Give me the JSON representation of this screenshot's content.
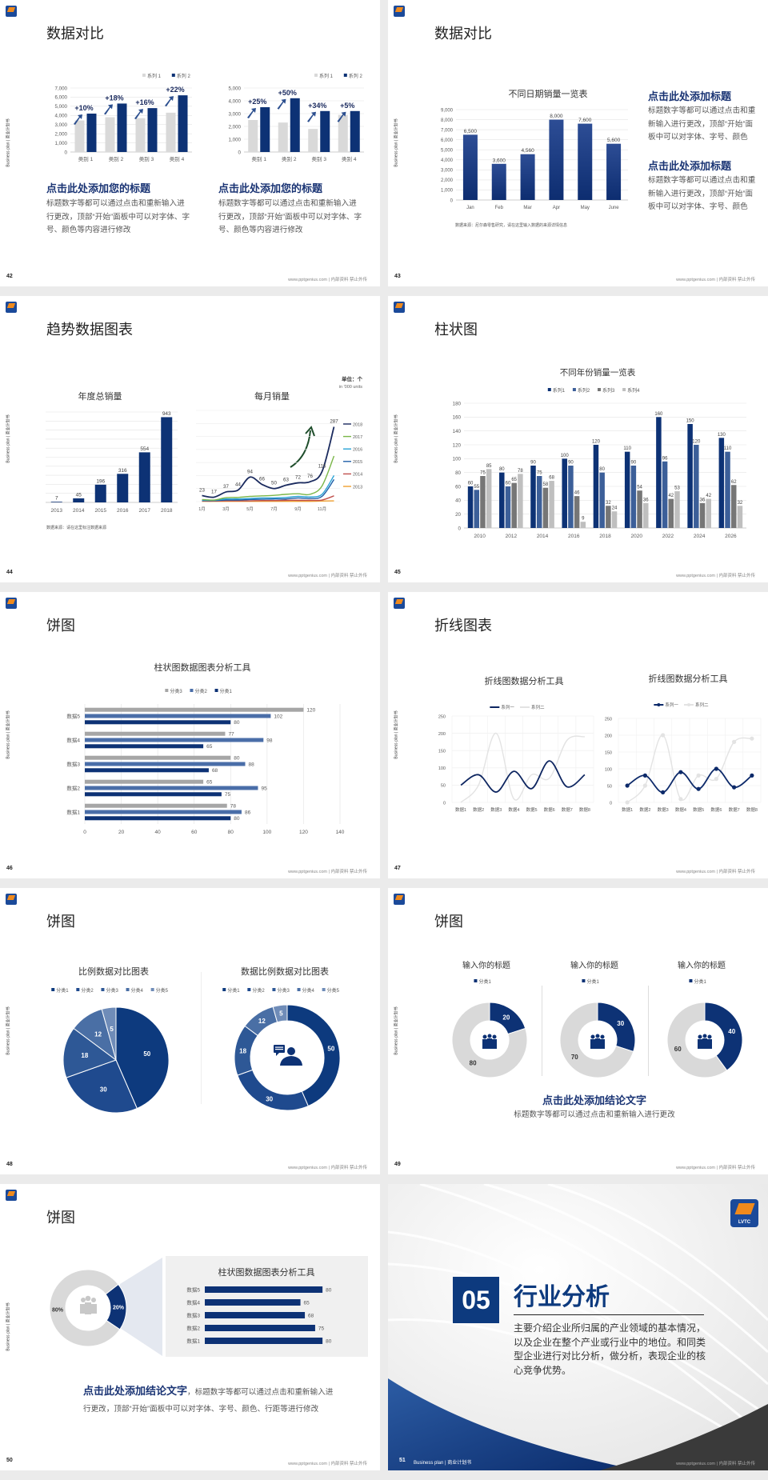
{
  "common": {
    "side_text": "Business plan | 商业计划书",
    "footer": "www.pptgenius.com | 内部资料 禁止外传",
    "logo_text": "LVTC"
  },
  "colors": {
    "navy": "#0d3275",
    "blue": "#3c5f99",
    "gray": "#d9d9d9",
    "dark_gray": "#767676",
    "light_gray": "#bfbfbf",
    "heading": "#1a3474"
  },
  "slides": {
    "s42": {
      "page": "42",
      "title": "数据对比",
      "blocks": [
        {
          "heading": "点击此处添加您的标题",
          "body": "标题数字等都可以通过点击和重新输入进行更改，顶部“开始”面板中可以对字体、字号、颜色等内容进行修改"
        },
        {
          "heading": "点击此处添加您的标题",
          "body": "标题数字等都可以通过点击和重新输入进行更改，顶部“开始”面板中可以对字体、字号、颜色等内容进行修改"
        }
      ]
    },
    "s43": {
      "page": "43",
      "title": "数据对比",
      "blocks": [
        {
          "heading": "点击此处添加标题",
          "body": "标题数字等都可以通过点击和重新输入进行更改，顶部“开始”面板中可以对字体、字号、颜色"
        },
        {
          "heading": "点击此处添加标题",
          "body": "标题数字等都可以通过点击和重新输入进行更改，顶部“开始”面板中可以对字体、字号、颜色"
        }
      ]
    },
    "s44": {
      "page": "44",
      "title": "趋势数据图表",
      "unit": "单位：个",
      "unit_en": "in '000 units"
    },
    "s45": {
      "page": "45",
      "title": "柱状图"
    },
    "s46": {
      "page": "46",
      "title": "饼图"
    },
    "s47": {
      "page": "47",
      "title": "折线图表"
    },
    "s48": {
      "page": "48",
      "title": "饼图"
    },
    "s49": {
      "page": "49",
      "title": "饼图",
      "conclusion": "点击此处添加结论文字",
      "body": "标题数字等都可以通过点击和重新输入进行更改"
    },
    "s50": {
      "page": "50",
      "title": "饼图",
      "conclusion": "点击此处添加结论文字",
      "body": "，标题数字等都可以通过点击和重新输入进行更改，顶部“开始”面板中可以对字体、字号、颜色、行距等进行修改"
    },
    "s51": {
      "page": "51",
      "number": "05",
      "title": "行业分析",
      "body": "主要介绍企业所归属的产业领域的基本情况，以及企业在整个产业或行业中的地位。和同类型企业进行对比分析，做分析，表现企业的核心竞争优势。",
      "footer_label": "Business plan | 商业计划书"
    }
  },
  "chart_data": [
    {
      "type": "bar",
      "categories": [
        "类别 1",
        "类别 2",
        "类别 3",
        "类别 4"
      ],
      "series": [
        {
          "name": "系列 1",
          "values": [
            3450,
            3800,
            3700,
            4300
          ]
        },
        {
          "name": "系列 2",
          "values": [
            4200,
            5300,
            4800,
            6200
          ]
        }
      ],
      "colors": [
        "#d9d9d9",
        "#0d3275"
      ],
      "ylim": [
        0,
        7000
      ],
      "ystep": 1000,
      "annotations": [
        "+10%",
        "+18%",
        "+16%",
        "+22%"
      ],
      "legend": "top-right",
      "grid": true
    },
    {
      "type": "bar",
      "categories": [
        "类别 1",
        "类别 2",
        "类别 3",
        "类别 4"
      ],
      "series": [
        {
          "name": "系列 1",
          "values": [
            2500,
            2300,
            1800,
            2900
          ]
        },
        {
          "name": "系列 2",
          "values": [
            3500,
            4200,
            3200,
            3200
          ]
        }
      ],
      "colors": [
        "#d9d9d9",
        "#0d3275"
      ],
      "ylim": [
        0,
        5000
      ],
      "ystep": 1000,
      "annotations": [
        "+25%",
        "+50%",
        "+34%",
        "+5%"
      ],
      "legend": "top-right",
      "grid": true
    },
    {
      "type": "bar",
      "title": "不同日期销量一览表",
      "categories": [
        "Jan",
        "Feb",
        "Mar",
        "Apr",
        "May",
        "June"
      ],
      "values": [
        6500,
        3600,
        4560,
        8000,
        7600,
        5600
      ],
      "data_labels": [
        "6,500",
        "3,600",
        "4,560",
        "8,000",
        "7,600",
        "5,600"
      ],
      "colors": [
        "#0d2d70"
      ],
      "ylim": [
        0,
        9000
      ],
      "ystep": 1000,
      "grid": true,
      "source": "数据来源：尼尔森零售研究，请在这里输入数据的来源详情信息"
    },
    {
      "type": "bar",
      "title": "年度总销量",
      "categories": [
        "2013",
        "2014",
        "2015",
        "2016",
        "2017",
        "2018"
      ],
      "values": [
        7,
        45,
        196,
        316,
        554,
        943
      ],
      "data_labels": [
        "7",
        "45",
        "196",
        "316",
        "554",
        "943"
      ],
      "colors": [
        "#0d3275"
      ],
      "ylim": [
        0,
        1000
      ],
      "ystep": 100,
      "grid": true,
      "source": "数据来源：请在这里标注数据来源"
    },
    {
      "type": "line",
      "title": "每月销量",
      "categories": [
        "1月",
        "2月",
        "3月",
        "4月",
        "5月",
        "6月",
        "7月",
        "8月",
        "9月",
        "10月",
        "11月",
        "12月"
      ],
      "series": [
        {
          "name": "2018",
          "values": [
            23,
            17,
            37,
            44,
            94,
            66,
            50,
            63,
            72,
            76,
            115,
            287
          ],
          "data_labels": [
            "23",
            "17",
            "37",
            "44",
            "94",
            "66",
            "50",
            "63",
            "72",
            "76",
            "115",
            "287"
          ]
        },
        {
          "name": "2017",
          "values": [
            8,
            6,
            15,
            16,
            20,
            22,
            24,
            28,
            30,
            28,
            60,
            175
          ]
        },
        {
          "name": "2016",
          "values": [
            5,
            5,
            10,
            10,
            12,
            14,
            14,
            16,
            20,
            18,
            28,
            100
          ]
        },
        {
          "name": "2015",
          "values": [
            4,
            4,
            6,
            6,
            8,
            9,
            10,
            10,
            14,
            12,
            20,
            85
          ]
        },
        {
          "name": "2014",
          "values": [
            2,
            2,
            3,
            3,
            3,
            4,
            4,
            5,
            5,
            5,
            6,
            22
          ]
        },
        {
          "name": "2013",
          "values": [
            1,
            1,
            1,
            1,
            1,
            1,
            1,
            1,
            1,
            1,
            2,
            3
          ]
        }
      ],
      "colors": [
        "#1a2a5e",
        "#7ab648",
        "#29a3d6",
        "#1f5fa8",
        "#c0504d",
        "#f0a030"
      ],
      "ylim": [
        0,
        350
      ],
      "ystep": 50,
      "grid": true,
      "legend": "right"
    },
    {
      "type": "bar",
      "title": "不同年份销量一览表",
      "categories": [
        "2010",
        "2012",
        "2014",
        "2016",
        "2018",
        "2020",
        "2022",
        "2024",
        "2026"
      ],
      "series": [
        {
          "name": "系列1",
          "values": [
            60,
            80,
            90,
            100,
            120,
            110,
            160,
            150,
            130
          ]
        },
        {
          "name": "系列2",
          "values": [
            55,
            60,
            75,
            90,
            80,
            90,
            96,
            120,
            110
          ]
        },
        {
          "name": "系列3",
          "values": [
            75,
            65,
            58,
            46,
            32,
            54,
            42,
            36,
            62
          ]
        },
        {
          "name": "系列4",
          "values": [
            85,
            78,
            68,
            9,
            24,
            36,
            53,
            42,
            32
          ]
        }
      ],
      "colors": [
        "#0d3275",
        "#3c5f99",
        "#767676",
        "#bfbfbf"
      ],
      "ylim": [
        0,
        180
      ],
      "ystep": 20,
      "grid": true,
      "legend": "top"
    },
    {
      "type": "bar",
      "orientation": "horizontal",
      "title": "柱状图数据图表分析工具",
      "categories": [
        "数据1",
        "数据2",
        "数据3",
        "数据4",
        "数据5"
      ],
      "series": [
        {
          "name": "分类3",
          "values": [
            78,
            65,
            80,
            77,
            120
          ]
        },
        {
          "name": "分类2",
          "values": [
            86,
            95,
            88,
            98,
            102
          ]
        },
        {
          "name": "分类1",
          "values": [
            80,
            75,
            68,
            65,
            80
          ]
        }
      ],
      "colors": [
        "#a6a6a6",
        "#4a6ea8",
        "#0d3275"
      ],
      "xlim": [
        0,
        140
      ],
      "xstep": 20,
      "grid": true,
      "legend": "top"
    },
    {
      "type": "line",
      "title": "折线图数据分析工具",
      "categories": [
        "数据1",
        "数据2",
        "数据3",
        "数据4",
        "数据5",
        "数据6",
        "数据7",
        "数据8"
      ],
      "series": [
        {
          "name": "系列一",
          "values": [
            50,
            80,
            30,
            90,
            40,
            120,
            45,
            80
          ]
        },
        {
          "name": "系列二",
          "values": [
            0,
            50,
            200,
            10,
            80,
            70,
            180,
            190
          ]
        }
      ],
      "colors": [
        "#0d2560",
        "#e3e3e3"
      ],
      "ylim": [
        0,
        250
      ],
      "ystep": 50,
      "grid": true,
      "legend": "top",
      "smooth": true
    },
    {
      "type": "line",
      "title": "折线图数据分析工具",
      "categories": [
        "数据1",
        "数据2",
        "数据3",
        "数据4",
        "数据5",
        "数据6",
        "数据7",
        "数据8"
      ],
      "series": [
        {
          "name": "系列一",
          "values": [
            50,
            80,
            30,
            90,
            40,
            100,
            45,
            80
          ]
        },
        {
          "name": "系列二",
          "values": [
            0,
            50,
            200,
            10,
            80,
            70,
            180,
            190
          ]
        }
      ],
      "colors": [
        "#0d2a6a",
        "#e3e3e3"
      ],
      "ylim": [
        0,
        250
      ],
      "ystep": 50,
      "grid": true,
      "legend": "top",
      "smooth": true,
      "markers": true
    },
    {
      "type": "pie",
      "title": "比例数据对比图表",
      "categories": [
        "分类1",
        "分类2",
        "分类3",
        "分类4",
        "分类5"
      ],
      "values": [
        50,
        30,
        18,
        12,
        5
      ],
      "colors": [
        "#0d3a7e",
        "#1f4a8e",
        "#2e5896",
        "#4a6fa5",
        "#6f8cb8"
      ],
      "legend": "top"
    },
    {
      "type": "pie",
      "donut": true,
      "title": "数据比例数据对比图表",
      "categories": [
        "分类1",
        "分类2",
        "分类3",
        "分类4",
        "分类5"
      ],
      "values": [
        50,
        30,
        18,
        12,
        5
      ],
      "colors": [
        "#0d3a7e",
        "#1f4a8e",
        "#2e5896",
        "#4a6fa5",
        "#6f8cb8"
      ],
      "legend": "top"
    },
    {
      "type": "pie",
      "donut": true,
      "title": "输入你的标题",
      "categories": [
        "分类1",
        ""
      ],
      "values": [
        20,
        80
      ],
      "colors": [
        "#0d3275",
        "#d9d9d9"
      ],
      "legend": "top"
    },
    {
      "type": "pie",
      "donut": true,
      "title": "输入你的标题",
      "categories": [
        "分类1",
        ""
      ],
      "values": [
        30,
        70
      ],
      "colors": [
        "#0d3275",
        "#d9d9d9"
      ],
      "legend": "top"
    },
    {
      "type": "pie",
      "donut": true,
      "title": "输入你的标题",
      "categories": [
        "分类1",
        ""
      ],
      "values": [
        40,
        60
      ],
      "colors": [
        "#0d3275",
        "#d9d9d9"
      ],
      "legend": "top"
    },
    {
      "type": "pie",
      "donut": true,
      "values": [
        20,
        80
      ],
      "data_labels": [
        "20%",
        "80%"
      ],
      "colors": [
        "#0d3275",
        "#d9d9d9"
      ]
    },
    {
      "type": "bar",
      "orientation": "horizontal",
      "title": "柱状图数据图表分析工具",
      "categories": [
        "数据1",
        "数据2",
        "数据3",
        "数据4",
        "数据5"
      ],
      "values": [
        80,
        75,
        68,
        65,
        80
      ],
      "colors": [
        "#0d3275"
      ]
    }
  ]
}
